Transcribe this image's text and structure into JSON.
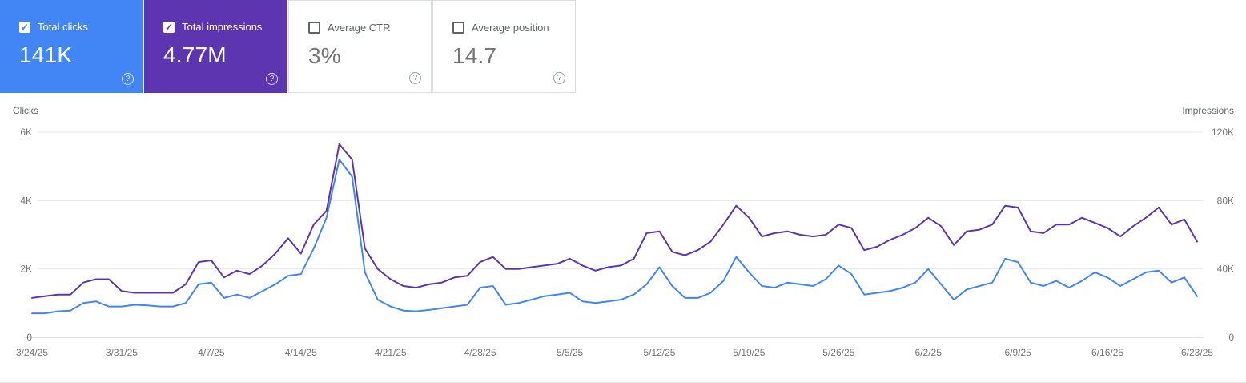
{
  "cards": [
    {
      "label": "Total clicks",
      "value": "141K",
      "checked": true,
      "color": "#4285f4"
    },
    {
      "label": "Total impressions",
      "value": "4.77M",
      "checked": true,
      "color": "#5e35b1"
    },
    {
      "label": "Average CTR",
      "value": "3%",
      "checked": false,
      "color": "#ffffff"
    },
    {
      "label": "Average position",
      "value": "14.7",
      "checked": false,
      "color": "#ffffff"
    }
  ],
  "help_icon": "?",
  "check_glyph": "✓",
  "chart_data": {
    "type": "line",
    "grid": true,
    "legend": "none",
    "y_axis_left": {
      "title": "Clicks",
      "max": 6000,
      "ticks": [
        {
          "value": 0,
          "label": "0"
        },
        {
          "value": 2000,
          "label": "2K"
        },
        {
          "value": 4000,
          "label": "4K"
        },
        {
          "value": 6000,
          "label": "6K"
        }
      ]
    },
    "y_axis_right": {
      "title": "Impressions",
      "max": 120000,
      "ticks": [
        {
          "value": 0,
          "label": "0"
        },
        {
          "value": 40000,
          "label": "40K"
        },
        {
          "value": 80000,
          "label": "80K"
        },
        {
          "value": 120000,
          "label": "120K"
        }
      ]
    },
    "x_tick_labels": [
      {
        "index": 0,
        "label": "3/24/25"
      },
      {
        "index": 7,
        "label": "3/31/25"
      },
      {
        "index": 14,
        "label": "4/7/25"
      },
      {
        "index": 21,
        "label": "4/14/25"
      },
      {
        "index": 28,
        "label": "4/21/25"
      },
      {
        "index": 35,
        "label": "4/28/25"
      },
      {
        "index": 42,
        "label": "5/5/25"
      },
      {
        "index": 49,
        "label": "5/12/25"
      },
      {
        "index": 56,
        "label": "5/19/25"
      },
      {
        "index": 63,
        "label": "5/26/25"
      },
      {
        "index": 70,
        "label": "6/2/25"
      },
      {
        "index": 77,
        "label": "6/9/25"
      },
      {
        "index": 84,
        "label": "6/16/25"
      },
      {
        "index": 91,
        "label": "6/23/25"
      }
    ],
    "x_dates": [
      "3/24/25",
      "3/25/25",
      "3/26/25",
      "3/27/25",
      "3/28/25",
      "3/29/25",
      "3/30/25",
      "3/31/25",
      "4/1/25",
      "4/2/25",
      "4/3/25",
      "4/4/25",
      "4/5/25",
      "4/6/25",
      "4/7/25",
      "4/8/25",
      "4/9/25",
      "4/10/25",
      "4/11/25",
      "4/12/25",
      "4/13/25",
      "4/14/25",
      "4/15/25",
      "4/16/25",
      "4/17/25",
      "4/18/25",
      "4/19/25",
      "4/20/25",
      "4/21/25",
      "4/22/25",
      "4/23/25",
      "4/24/25",
      "4/25/25",
      "4/26/25",
      "4/27/25",
      "4/28/25",
      "4/29/25",
      "4/30/25",
      "5/1/25",
      "5/2/25",
      "5/3/25",
      "5/4/25",
      "5/5/25",
      "5/6/25",
      "5/7/25",
      "5/8/25",
      "5/9/25",
      "5/10/25",
      "5/11/25",
      "5/12/25",
      "5/13/25",
      "5/14/25",
      "5/15/25",
      "5/16/25",
      "5/17/25",
      "5/18/25",
      "5/19/25",
      "5/20/25",
      "5/21/25",
      "5/22/25",
      "5/23/25",
      "5/24/25",
      "5/25/25",
      "5/26/25",
      "5/27/25",
      "5/28/25",
      "5/29/25",
      "5/30/25",
      "5/31/25",
      "6/1/25",
      "6/2/25",
      "6/3/25",
      "6/4/25",
      "6/5/25",
      "6/6/25",
      "6/7/25",
      "6/8/25",
      "6/9/25",
      "6/10/25",
      "6/11/25",
      "6/12/25",
      "6/13/25",
      "6/14/25",
      "6/15/25",
      "6/16/25",
      "6/17/25",
      "6/18/25",
      "6/19/25",
      "6/20/25",
      "6/21/25",
      "6/22/25",
      "6/23/25"
    ],
    "series": [
      {
        "name": "Clicks",
        "color": "#4285f4",
        "axis": "left",
        "values": [
          700,
          700,
          760,
          780,
          1000,
          1050,
          900,
          900,
          950,
          930,
          900,
          900,
          1000,
          1550,
          1600,
          1150,
          1250,
          1150,
          1350,
          1550,
          1800,
          1850,
          2600,
          3500,
          5200,
          4700,
          1900,
          1100,
          900,
          780,
          760,
          800,
          850,
          900,
          950,
          1450,
          1500,
          950,
          1000,
          1100,
          1200,
          1250,
          1300,
          1050,
          1000,
          1050,
          1100,
          1250,
          1550,
          2050,
          1500,
          1150,
          1150,
          1300,
          1650,
          2350,
          1900,
          1500,
          1450,
          1600,
          1550,
          1500,
          1700,
          2100,
          1850,
          1250,
          1300,
          1350,
          1450,
          1600,
          2000,
          1550,
          1100,
          1400,
          1500,
          1600,
          2300,
          2200,
          1600,
          1500,
          1650,
          1450,
          1650,
          1900,
          1750,
          1500,
          1700,
          1900,
          1950,
          1600,
          1750,
          1200
        ]
      },
      {
        "name": "Impressions",
        "color": "#5e35b1",
        "axis": "right",
        "values": [
          23000,
          24000,
          25000,
          25000,
          32000,
          34000,
          34000,
          27000,
          26000,
          26000,
          26000,
          26000,
          31000,
          44000,
          45000,
          35000,
          39000,
          37000,
          42000,
          49000,
          58000,
          49000,
          66000,
          74000,
          113000,
          104000,
          52000,
          40000,
          34000,
          30000,
          29000,
          31000,
          32000,
          35000,
          36000,
          44000,
          47000,
          40000,
          40000,
          41000,
          42000,
          43000,
          46000,
          42000,
          39000,
          41000,
          42000,
          46000,
          61000,
          62000,
          50000,
          48000,
          51000,
          56000,
          66000,
          77000,
          70000,
          59000,
          61000,
          62000,
          60000,
          59000,
          60000,
          66000,
          64000,
          51000,
          53000,
          57000,
          60000,
          64000,
          70000,
          65000,
          54000,
          62000,
          63000,
          66000,
          77000,
          76000,
          62000,
          61000,
          66000,
          66000,
          70000,
          67000,
          64000,
          59000,
          65000,
          70000,
          76000,
          66000,
          69000,
          56000
        ]
      }
    ]
  }
}
